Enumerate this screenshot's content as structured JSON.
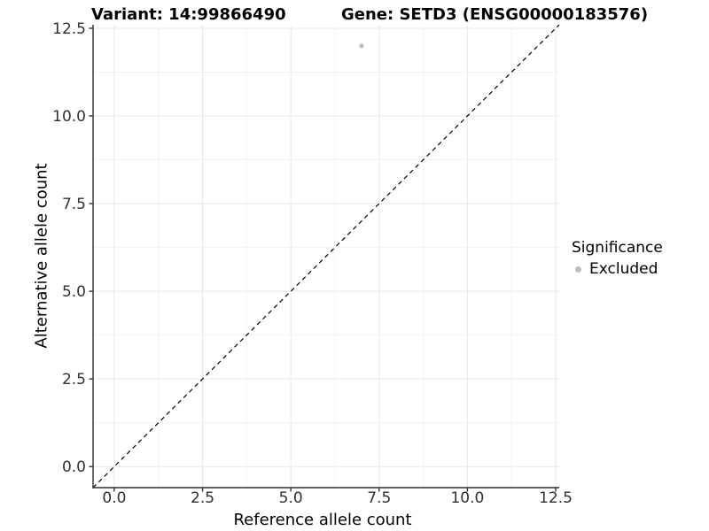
{
  "header": {
    "variant_title": "Variant: 14:99866490",
    "gene_title": "Gene: SETD3 (ENSG00000183576)"
  },
  "chart_data": {
    "type": "scatter",
    "titles": [
      "Variant: 14:99866490",
      "Gene: SETD3 (ENSG00000183576)"
    ],
    "xlabel": "Reference allele count",
    "ylabel": "Alternative allele count",
    "xlim": [
      -0.6,
      12.6
    ],
    "ylim": [
      -0.6,
      12.6
    ],
    "xticks": {
      "values": [
        0,
        2.5,
        5,
        7.5,
        10,
        12.5
      ],
      "labels": [
        "0.0",
        "2.5",
        "5.0",
        "7.5",
        "10.0",
        "12.5"
      ]
    },
    "yticks": {
      "values": [
        0,
        2.5,
        5,
        7.5,
        10,
        12.5
      ],
      "labels": [
        "0.0",
        "2.5",
        "5.0",
        "7.5",
        "10.0",
        "12.5"
      ]
    },
    "grid": {
      "major": true,
      "minor": true
    },
    "reference_line": {
      "slope": 1,
      "intercept": 0,
      "style": "dashed",
      "color": "#000000"
    },
    "series": [
      {
        "name": "Excluded",
        "color": "#bebebe",
        "points": [
          {
            "x": 7,
            "y": 12
          }
        ]
      }
    ],
    "legend": {
      "title": "Significance",
      "position": "right",
      "items": [
        {
          "label": "Excluded",
          "color": "#bebebe"
        }
      ]
    }
  },
  "colors": {
    "background": "#ffffff",
    "axis_line": "#2f2f2f",
    "tick_label": "#303030",
    "grid_major": "#e8e8e8",
    "grid_minor": "#f3f3f3",
    "point": "#bebebe",
    "reference_line": "#000000"
  }
}
